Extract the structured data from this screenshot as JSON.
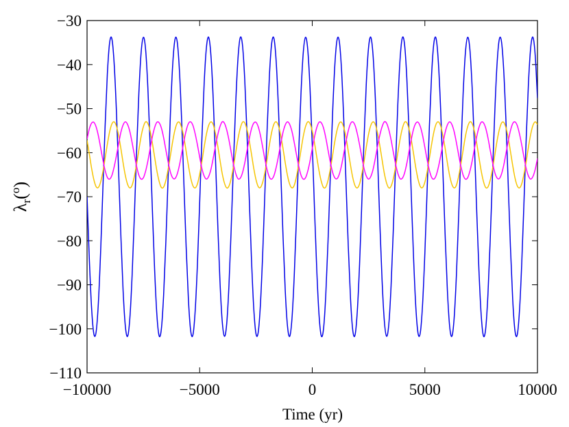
{
  "chart_data": {
    "type": "line",
    "xlabel": "Time (yr)",
    "ylabel": {
      "symbol": "λ",
      "subscript": "r",
      "open": "(",
      "unit": "o",
      "close": ")"
    },
    "xlim": [
      -10000,
      10000
    ],
    "ylim": [
      -110,
      -30
    ],
    "xticks": [
      {
        "value": -10000,
        "label": "−10000"
      },
      {
        "value": -5000,
        "label": "−5000"
      },
      0,
      5000,
      10000
    ],
    "yticks": [
      {
        "value": -110,
        "label": "−110"
      },
      {
        "value": -100,
        "label": "−100"
      },
      {
        "value": -90,
        "label": "−90"
      },
      {
        "value": -80,
        "label": "−80"
      },
      {
        "value": -70,
        "label": "−70"
      },
      {
        "value": -60,
        "label": "−60"
      },
      {
        "value": -50,
        "label": "−50"
      },
      {
        "value": -40,
        "label": "−40"
      },
      {
        "value": -30,
        "label": "−30"
      }
    ],
    "grid": false,
    "x": [
      -10000,
      -9900,
      -9800,
      -9700,
      -9600,
      -9500,
      -9400,
      -9300,
      -9200,
      -9100,
      -9000,
      -8900,
      -8800,
      -8700,
      -8600,
      -8500,
      -8400,
      -8300,
      -8200,
      -8100,
      -8000,
      -7900,
      -7800,
      -7700,
      -7600,
      -7500,
      -7400,
      -7300,
      -7200,
      -7100,
      -7000,
      -6900,
      -6800,
      -6700,
      -6600,
      -6500,
      -6400,
      -6300,
      -6200,
      -6100,
      -6000,
      -5900,
      -5800,
      -5700,
      -5600,
      -5500,
      -5400,
      -5300,
      -5200,
      -5100,
      -5000,
      -4900,
      -4800,
      -4700,
      -4600,
      -4500,
      -4400,
      -4300,
      -4200,
      -4100,
      -4000,
      -3900,
      -3800,
      -3700,
      -3600,
      -3500,
      -3400,
      -3300,
      -3200,
      -3100,
      -3000,
      -2900,
      -2800,
      -2700,
      -2600,
      -2500,
      -2400,
      -2300,
      -2200,
      -2100,
      -2000,
      -1900,
      -1800,
      -1700,
      -1600,
      -1500,
      -1400,
      -1300,
      -1200,
      -1100,
      -1000,
      -900,
      -800,
      -700,
      -600,
      -500,
      -400,
      -300,
      -200,
      -100,
      0,
      100,
      200,
      300,
      400,
      500,
      600,
      700,
      800,
      900,
      1000,
      1100,
      1200,
      1300,
      1400,
      1500,
      1600,
      1700,
      1800,
      1900,
      2000,
      2100,
      2200,
      2300,
      2400,
      2500,
      2600,
      2700,
      2800,
      2900,
      3000,
      3100,
      3200,
      3300,
      3400,
      3500,
      3600,
      3700,
      3800,
      3900,
      4000,
      4100,
      4200,
      4300,
      4400,
      4500,
      4600,
      4700,
      4800,
      4900,
      5000,
      5100,
      5200,
      5300,
      5400,
      5500,
      5600,
      5700,
      5800,
      5900,
      6000,
      6100,
      6200,
      6300,
      6400,
      6500,
      6600,
      6700,
      6800,
      6900,
      7000,
      7100,
      7200,
      7300,
      7400,
      7500,
      7600,
      7700,
      7800,
      7900,
      8000,
      8100,
      8200,
      8300,
      8400,
      8500,
      8600,
      8700,
      8800,
      8900,
      9000,
      9100,
      9200,
      9300,
      9400,
      9500,
      9600,
      9700,
      9800,
      9900,
      10000
    ],
    "series": [
      {
        "color": "#0000e6",
        "values": [
          -70.0,
          -84.1,
          -95.2,
          -101.1,
          -100.8,
          -94.3,
          -82.8,
          -68.5,
          -54.1,
          -42.2,
          -35.1,
          -34.1,
          -39.5,
          -50.1,
          -64.1,
          -78.7,
          -91.3,
          -99.4,
          -101.7,
          -97.6,
          -87.9,
          -74.4,
          -59.7,
          -46.5,
          -37.3,
          -33.8,
          -36.6,
          -45.3,
          -58.2,
          -72.9,
          -86.6,
          -96.8,
          -101.6,
          -100.0,
          -92.3,
          -80.1,
          -65.5,
          -51.4,
          -40.3,
          -34.4,
          -34.7,
          -41.2,
          -52.7,
          -67.0,
          -81.4,
          -93.3,
          -100.4,
          -101.4,
          -96.0,
          -85.4,
          -71.4,
          -56.8,
          -44.2,
          -36.1,
          -33.8,
          -37.9,
          -47.6,
          -61.1,
          -75.8,
          -89.0,
          -98.2,
          -101.7,
          -98.9,
          -90.2,
          -77.3,
          -62.6,
          -48.9,
          -38.7,
          -33.9,
          -35.5,
          -43.2,
          -55.4,
          -70.0,
          -84.1,
          -95.2,
          -101.1,
          -100.8,
          -94.3,
          -82.8,
          -68.5,
          -54.1,
          -42.2,
          -35.1,
          -34.1,
          -39.5,
          -50.1,
          -64.1,
          -78.7,
          -91.3,
          -99.4,
          -101.7,
          -97.6,
          -87.9,
          -74.4,
          -59.7,
          -46.5,
          -37.3,
          -33.8,
          -36.6,
          -45.3,
          -58.2,
          -72.9,
          -86.6,
          -96.8,
          -101.6,
          -100.0,
          -92.3,
          -80.1,
          -65.5,
          -51.4,
          -40.3,
          -34.4,
          -34.7,
          -41.2,
          -52.7,
          -67.0,
          -81.4,
          -93.3,
          -100.4,
          -101.4,
          -96.0,
          -85.4,
          -71.4,
          -56.8,
          -44.2,
          -36.1,
          -33.8,
          -37.9,
          -47.6,
          -61.1,
          -75.8,
          -89.0,
          -98.2,
          -101.7,
          -98.9,
          -90.2,
          -77.3,
          -62.6,
          -48.9,
          -38.7,
          -33.9,
          -35.5,
          -43.2,
          -55.4,
          -70.0,
          -84.1,
          -95.2,
          -101.1,
          -100.8,
          -94.3,
          -82.8,
          -68.5,
          -54.1,
          -42.2,
          -35.1,
          -34.1,
          -39.5,
          -50.1,
          -64.1,
          -78.7,
          -91.3,
          -99.4,
          -101.7,
          -97.6,
          -87.9,
          -74.4,
          -59.7,
          -46.5,
          -37.3,
          -33.8,
          -36.6,
          -45.3,
          -58.2,
          -72.9,
          -86.6,
          -96.8,
          -101.6,
          -100.0,
          -92.3,
          -80.1,
          -65.5,
          -51.4,
          -40.3,
          -34.4,
          -34.7,
          -41.2,
          -52.7,
          -67.0,
          -81.4,
          -93.3,
          -100.4,
          -101.4,
          -96.0,
          -85.4,
          -71.4,
          -56.8,
          -44.2,
          -36.1,
          -33.8,
          -37.9,
          -47.6
        ]
      },
      {
        "color": "#f5c400",
        "values": [
          -57.2,
          -60.3,
          -63.5,
          -66.1,
          -67.7,
          -67.9,
          -66.7,
          -64.4,
          -61.3,
          -58.1,
          -55.3,
          -53.5,
          -53.0,
          -53.9,
          -56.1,
          -59.0,
          -62.3,
          -65.2,
          -67.2,
          -68.0,
          -67.4,
          -65.4,
          -62.6,
          -59.4,
          -56.3,
          -54.1,
          -53.0,
          -53.4,
          -55.1,
          -57.8,
          -61.0,
          -64.1,
          -66.5,
          -67.9,
          -67.8,
          -66.3,
          -63.8,
          -60.7,
          -57.5,
          -54.9,
          -53.3,
          -53.1,
          -54.3,
          -56.6,
          -59.7,
          -62.9,
          -65.7,
          -67.5,
          -68.0,
          -67.1,
          -64.9,
          -62.0,
          -58.7,
          -55.8,
          -53.8,
          -53.0,
          -53.6,
          -55.6,
          -58.4,
          -61.6,
          -64.7,
          -66.9,
          -68.0,
          -67.6,
          -65.9,
          -63.2,
          -60.0,
          -56.9,
          -54.5,
          -53.1,
          -53.2,
          -54.7,
          -57.2,
          -60.3,
          -63.5,
          -66.1,
          -67.7,
          -67.9,
          -66.7,
          -64.4,
          -61.3,
          -58.1,
          -55.3,
          -53.5,
          -53.0,
          -53.9,
          -56.1,
          -59.0,
          -62.3,
          -65.2,
          -67.2,
          -68.0,
          -67.4,
          -65.4,
          -62.6,
          -59.4,
          -56.3,
          -54.1,
          -53.0,
          -53.4,
          -55.1,
          -57.8,
          -61.0,
          -64.1,
          -66.5,
          -67.9,
          -67.8,
          -66.3,
          -63.8,
          -60.7,
          -57.5,
          -54.9,
          -53.3,
          -53.1,
          -54.3,
          -56.6,
          -59.7,
          -62.9,
          -65.7,
          -67.5,
          -68.0,
          -67.1,
          -64.9,
          -62.0,
          -58.7,
          -55.8,
          -53.8,
          -53.0,
          -53.6,
          -55.6,
          -58.4,
          -61.6,
          -64.7,
          -66.9,
          -68.0,
          -67.6,
          -65.9,
          -63.2,
          -60.0,
          -56.9,
          -54.5,
          -53.1,
          -53.2,
          -54.7,
          -57.2,
          -60.3,
          -63.5,
          -66.1,
          -67.7,
          -67.9,
          -66.7,
          -64.4,
          -61.3,
          -58.1,
          -55.3,
          -53.5,
          -53.0,
          -53.9,
          -56.1,
          -59.0,
          -62.3,
          -65.2,
          -67.2,
          -68.0,
          -67.4,
          -65.4,
          -62.6,
          -59.4,
          -56.3,
          -54.1,
          -53.0,
          -53.4,
          -55.1,
          -57.8,
          -61.0,
          -64.1,
          -66.5,
          -67.9,
          -67.8,
          -66.3,
          -63.8,
          -60.7,
          -57.5,
          -54.9,
          -53.3,
          -53.1,
          -54.3,
          -56.6,
          -59.7,
          -62.9,
          -65.7,
          -67.5,
          -68.0,
          -67.1,
          -64.9,
          -62.0,
          -58.7,
          -55.8,
          -53.8,
          -53.0,
          -53.6
        ]
      },
      {
        "color": "#ff00ff",
        "values": [
          -56.9,
          -54.6,
          -53.3,
          -53.1,
          -54.1,
          -56.1,
          -58.8,
          -61.6,
          -64.0,
          -65.6,
          -66.0,
          -65.2,
          -63.3,
          -60.8,
          -58.0,
          -55.4,
          -53.7,
          -53.0,
          -53.6,
          -55.2,
          -57.7,
          -60.5,
          -63.1,
          -65.1,
          -66.0,
          -65.7,
          -64.2,
          -61.9,
          -59.1,
          -56.4,
          -54.3,
          -53.1,
          -53.2,
          -54.4,
          -56.6,
          -59.4,
          -62.1,
          -64.4,
          -65.7,
          -65.9,
          -64.9,
          -62.9,
          -60.2,
          -57.4,
          -55.0,
          -53.4,
          -53.0,
          -53.8,
          -55.7,
          -58.2,
          -61.0,
          -63.6,
          -65.3,
          -66.0,
          -65.4,
          -63.8,
          -61.3,
          -58.5,
          -56.0,
          -54.1,
          -53.0,
          -53.3,
          -54.8,
          -57.1,
          -59.9,
          -62.6,
          -64.7,
          -65.9,
          -65.8,
          -64.6,
          -62.4,
          -59.6,
          -56.9,
          -54.6,
          -53.3,
          -53.1,
          -54.1,
          -56.1,
          -58.8,
          -61.6,
          -64.0,
          -65.6,
          -66.0,
          -65.2,
          -63.3,
          -60.8,
          -58.0,
          -55.4,
          -53.7,
          -53.0,
          -53.6,
          -55.2,
          -57.7,
          -60.5,
          -63.1,
          -65.1,
          -66.0,
          -65.7,
          -64.2,
          -61.9,
          -59.1,
          -56.4,
          -54.3,
          -53.1,
          -53.2,
          -54.4,
          -56.6,
          -59.4,
          -62.1,
          -64.4,
          -65.7,
          -65.9,
          -64.9,
          -62.9,
          -60.2,
          -57.4,
          -55.0,
          -53.4,
          -53.0,
          -53.8,
          -55.7,
          -58.2,
          -61.0,
          -63.6,
          -65.3,
          -66.0,
          -65.4,
          -63.8,
          -61.3,
          -58.5,
          -56.0,
          -54.1,
          -53.0,
          -53.3,
          -54.8,
          -57.1,
          -59.9,
          -62.6,
          -64.7,
          -65.9,
          -65.8,
          -64.6,
          -62.4,
          -59.6,
          -56.9,
          -54.6,
          -53.3,
          -53.1,
          -54.1,
          -56.1,
          -58.8,
          -61.6,
          -64.0,
          -65.6,
          -66.0,
          -65.2,
          -63.3,
          -60.8,
          -58.0,
          -55.4,
          -53.7,
          -53.0,
          -53.6,
          -55.2,
          -57.7,
          -60.5,
          -63.1,
          -65.1,
          -66.0,
          -65.7,
          -64.2,
          -61.9,
          -59.1,
          -56.4,
          -54.3,
          -53.1,
          -53.2,
          -54.4,
          -56.6,
          -59.4,
          -62.1,
          -64.4,
          -65.7,
          -65.9,
          -64.9,
          -62.9,
          -60.2,
          -57.4,
          -55.0,
          -53.4,
          -53.0,
          -53.8,
          -55.7,
          -58.2,
          -61.0,
          -63.6,
          -65.3,
          -66.0,
          -65.4,
          -63.8,
          -61.3
        ]
      }
    ]
  }
}
